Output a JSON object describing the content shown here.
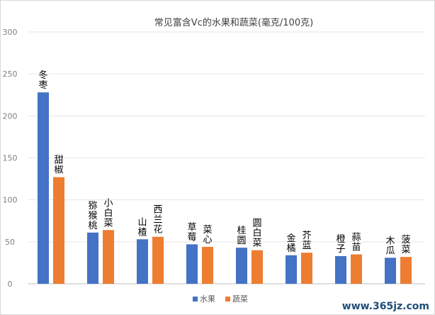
{
  "chart_data": {
    "type": "bar",
    "title": "常见富含Vc的水果和蔬菜(毫克/100克)",
    "ylim": [
      0,
      300
    ],
    "y_ticks": [
      0,
      50,
      100,
      150,
      200,
      250,
      300
    ],
    "grid": true,
    "legend_position": "bottom",
    "series": [
      {
        "name": "水果",
        "color": "#4472c4",
        "values": [
          228,
          61,
          53,
          47,
          43,
          34,
          33,
          31
        ],
        "labels": [
          "冬\n枣",
          "猕\n猴\n桃",
          "山\n楂",
          "草\n莓",
          "桂\n圆",
          "金\n橘",
          "橙\n子",
          "木\n瓜"
        ]
      },
      {
        "name": "蔬菜",
        "color": "#ed7d31",
        "values": [
          127,
          64,
          56,
          44,
          40,
          37,
          35,
          32
        ],
        "labels": [
          "甜\n椒",
          "小\n白\n菜",
          "西\n兰\n花",
          "菜\n心",
          "圆\n白\n菜",
          "芥\n蓝",
          "蒜\n苗",
          "菠\n菜"
        ]
      }
    ]
  },
  "watermark": "www.365jz.com"
}
